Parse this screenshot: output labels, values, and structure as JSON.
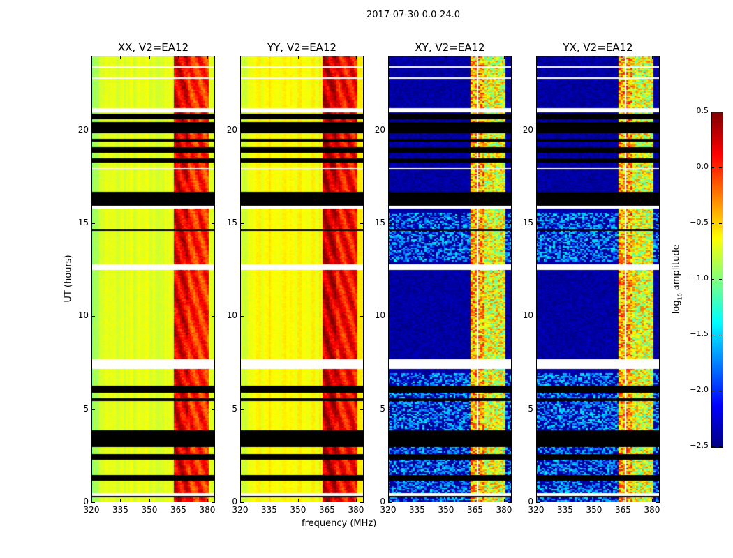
{
  "figure_title": "2017-07-30 0.0-24.0",
  "ylabel": "UT (hours)",
  "xlabel": "frequency (MHz)",
  "chart_data": {
    "type": "heatmap",
    "colormap": "jet",
    "xlim": [
      320,
      384
    ],
    "ylim": [
      0,
      24
    ],
    "xticks": [
      "320",
      "335",
      "350",
      "365",
      "380"
    ],
    "xtick_values": [
      320,
      335,
      350,
      365,
      380
    ],
    "yticks": [
      "0",
      "5",
      "10",
      "15",
      "20"
    ],
    "ytick_values": [
      0,
      5,
      10,
      15,
      20
    ],
    "panels": [
      {
        "title": "XX, V2=EA12",
        "kind": "parallel",
        "base": -0.72,
        "band": 0.05
      },
      {
        "title": "YY, V2=EA12",
        "kind": "parallel",
        "base": -0.62,
        "band": 0.15
      },
      {
        "title": "XY, V2=EA12",
        "kind": "cross",
        "base": -2.4,
        "band": -0.7
      },
      {
        "title": "YX, V2=EA12",
        "kind": "cross",
        "base": -2.4,
        "band": -0.7
      }
    ],
    "rfi_band_mhz": [
      363,
      381
    ],
    "blank_channels_mhz": [
      366.5,
      371,
      376,
      380
    ],
    "flagged_hours": [
      [
        0.3,
        0.4
      ],
      [
        1.2,
        1.5
      ],
      [
        2.3,
        2.6
      ],
      [
        3.0,
        3.9
      ],
      [
        5.5,
        5.6
      ],
      [
        5.9,
        6.3
      ],
      [
        14.6,
        14.7
      ],
      [
        16.0,
        16.7
      ],
      [
        18.3,
        18.5
      ],
      [
        18.8,
        19.1
      ],
      [
        19.4,
        19.6
      ],
      [
        19.9,
        20.5
      ],
      [
        20.6,
        20.9
      ]
    ],
    "missing_hours": [
      [
        0.4,
        0.5
      ],
      [
        7.2,
        7.7
      ],
      [
        12.5,
        12.8
      ],
      [
        15.8,
        16.0
      ],
      [
        17.9,
        18.0
      ],
      [
        21.0,
        21.2
      ],
      [
        22.8,
        22.9
      ],
      [
        23.4,
        23.5
      ]
    ],
    "colorbar": {
      "label": "log10 amplitude",
      "range": [
        -2.5,
        0.5
      ],
      "ticks": [
        "0.5",
        "0.0",
        "−0.5",
        "−1.0",
        "−1.5",
        "−2.0",
        "−2.5"
      ],
      "tick_values": [
        0.5,
        0.0,
        -0.5,
        -1.0,
        -1.5,
        -2.0,
        -2.5
      ]
    }
  }
}
